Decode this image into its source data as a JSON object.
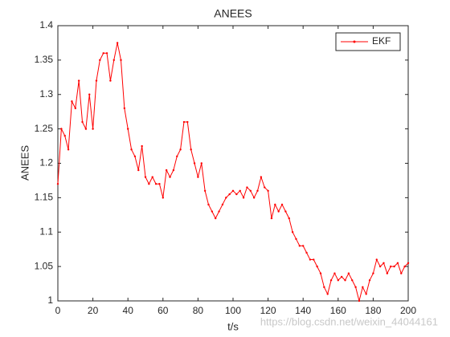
{
  "chart_data": {
    "type": "line",
    "title": "ANEES",
    "xlabel": "t/s",
    "ylabel": "ANEES",
    "x": [
      0,
      2,
      4,
      6,
      8,
      10,
      12,
      14,
      16,
      18,
      20,
      22,
      24,
      26,
      28,
      30,
      32,
      34,
      36,
      38,
      40,
      42,
      44,
      46,
      48,
      50,
      52,
      54,
      56,
      58,
      60,
      62,
      64,
      66,
      68,
      70,
      72,
      74,
      76,
      78,
      80,
      82,
      84,
      86,
      88,
      90,
      92,
      94,
      96,
      98,
      100,
      102,
      104,
      106,
      108,
      110,
      112,
      114,
      116,
      118,
      120,
      122,
      124,
      126,
      128,
      130,
      132,
      134,
      136,
      138,
      140,
      142,
      144,
      146,
      148,
      150,
      152,
      154,
      156,
      158,
      160,
      162,
      164,
      166,
      168,
      170,
      172,
      174,
      176,
      178,
      180,
      182,
      184,
      186,
      188,
      190,
      192,
      194,
      196,
      198,
      200
    ],
    "series": [
      {
        "name": "EKF",
        "color": "#ff0000",
        "values": [
          1.17,
          1.25,
          1.24,
          1.22,
          1.29,
          1.28,
          1.32,
          1.26,
          1.25,
          1.3,
          1.25,
          1.32,
          1.35,
          1.36,
          1.36,
          1.32,
          1.35,
          1.375,
          1.35,
          1.28,
          1.25,
          1.22,
          1.21,
          1.19,
          1.225,
          1.18,
          1.17,
          1.18,
          1.17,
          1.17,
          1.15,
          1.19,
          1.18,
          1.19,
          1.21,
          1.22,
          1.26,
          1.26,
          1.22,
          1.2,
          1.18,
          1.2,
          1.16,
          1.14,
          1.13,
          1.12,
          1.13,
          1.14,
          1.15,
          1.155,
          1.16,
          1.155,
          1.16,
          1.15,
          1.165,
          1.16,
          1.15,
          1.16,
          1.18,
          1.165,
          1.16,
          1.12,
          1.14,
          1.13,
          1.14,
          1.13,
          1.12,
          1.1,
          1.09,
          1.08,
          1.08,
          1.07,
          1.06,
          1.06,
          1.05,
          1.04,
          1.02,
          1.01,
          1.03,
          1.04,
          1.03,
          1.035,
          1.03,
          1.04,
          1.03,
          1.02,
          1.0,
          1.02,
          1.01,
          1.03,
          1.04,
          1.06,
          1.05,
          1.055,
          1.04,
          1.05,
          1.05,
          1.055,
          1.04,
          1.05,
          1.055
        ]
      }
    ],
    "xlim": [
      0,
      200
    ],
    "xticks": [
      0,
      20,
      40,
      60,
      80,
      100,
      120,
      140,
      160,
      180,
      200
    ],
    "ylim": [
      1,
      1.4
    ],
    "yticks": [
      1,
      1.05,
      1.1,
      1.15,
      1.2,
      1.25,
      1.3,
      1.35,
      1.4
    ],
    "legend": "northeast",
    "grid": false,
    "watermark": "https://blog.csdn.net/weixin_44044161"
  }
}
